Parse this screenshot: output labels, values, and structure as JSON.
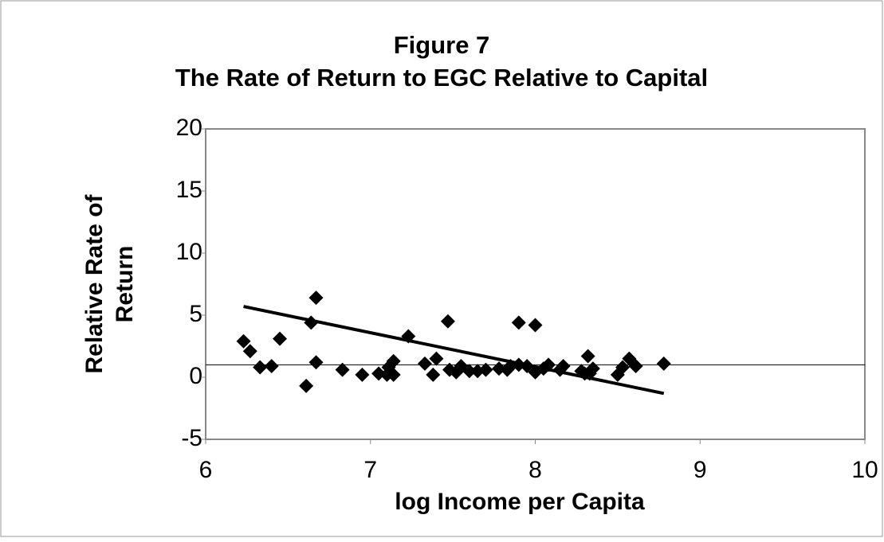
{
  "chart_data": {
    "type": "scatter",
    "title": [
      "Figure 7",
      "The Rate of Return to EGC Relative to Capital"
    ],
    "xlabel": "log Income per Capita",
    "ylabel": [
      "Relative Rate of",
      "Return"
    ],
    "x": [
      6.23,
      6.27,
      6.33,
      6.4,
      6.45,
      6.61,
      6.64,
      6.67,
      6.67,
      6.83,
      6.95,
      7.05,
      7.1,
      7.11,
      7.14,
      7.14,
      7.23,
      7.33,
      7.38,
      7.4,
      7.47,
      7.48,
      7.52,
      7.55,
      7.6,
      7.65,
      7.7,
      7.78,
      7.83,
      7.85,
      7.9,
      7.9,
      7.95,
      8.0,
      8.0,
      8.05,
      8.08,
      8.15,
      8.17,
      8.28,
      8.3,
      8.32,
      8.33,
      8.35,
      8.5,
      8.53,
      8.57,
      8.61,
      8.78
    ],
    "values": [
      2.9,
      2.1,
      0.8,
      0.9,
      3.1,
      -0.7,
      4.4,
      6.4,
      1.2,
      0.6,
      0.2,
      0.3,
      0.2,
      0.8,
      1.3,
      0.2,
      3.3,
      1.1,
      0.2,
      1.5,
      4.5,
      0.6,
      0.4,
      0.9,
      0.5,
      0.5,
      0.6,
      0.7,
      0.6,
      0.9,
      1.0,
      4.4,
      0.9,
      4.2,
      0.4,
      0.7,
      1.0,
      0.6,
      0.9,
      0.5,
      0.3,
      1.7,
      0.3,
      0.7,
      0.2,
      0.8,
      1.5,
      0.9,
      1.1
    ],
    "color": "#000000",
    "trendline": {
      "x": [
        6.23,
        8.78
      ],
      "y": [
        5.7,
        -1.3
      ]
    },
    "hline": 1,
    "xlim": [
      6,
      10
    ],
    "xticks": [
      6,
      7,
      8,
      9,
      10
    ],
    "ylim": [
      -5,
      20
    ],
    "yticks": [
      -5,
      0,
      5,
      10,
      15,
      20
    ]
  }
}
